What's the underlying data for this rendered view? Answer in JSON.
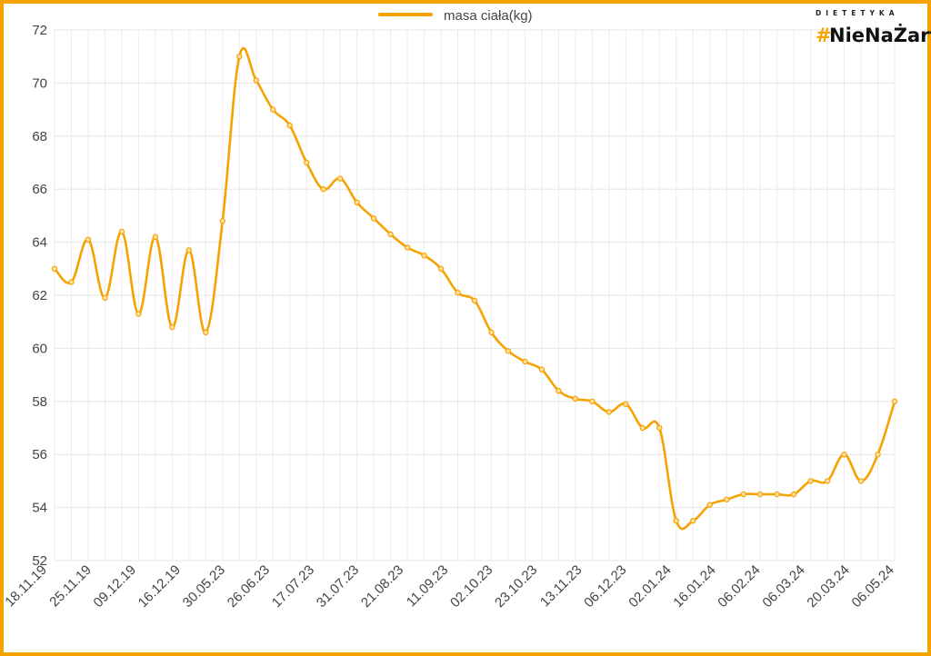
{
  "brand": {
    "top": "DIETETYKA",
    "hash": "#",
    "name": "NieNaŻarty",
    "accent": "#f5a300"
  },
  "chart_data": {
    "type": "line",
    "title": "",
    "xlabel": "",
    "ylabel": "",
    "ylim": [
      52,
      72
    ],
    "yticks": [
      52,
      54,
      56,
      58,
      60,
      62,
      64,
      66,
      68,
      70,
      72
    ],
    "grid": true,
    "legend_position": "top-center",
    "line_color": "#f5a300",
    "x_tick_labels": [
      "18.11.19",
      "25.11.19",
      "09.12.19",
      "16.12.19",
      "30.05.23",
      "26.06.23",
      "17.07.23",
      "31.07.23",
      "21.08.23",
      "11.09.23",
      "02.10.23",
      "23.10.23",
      "13.11.23",
      "06.12.23",
      "02.01.24",
      "16.01.24",
      "06.02.24",
      "06.03.24",
      "20.03.24",
      "06.05.24"
    ],
    "series": [
      {
        "name": "masa ciała(kg)",
        "values": [
          63.0,
          62.5,
          64.1,
          61.9,
          64.4,
          61.3,
          64.2,
          60.8,
          63.7,
          60.6,
          64.8,
          71.0,
          70.1,
          69.0,
          68.4,
          67.0,
          66.0,
          66.4,
          65.5,
          64.9,
          64.3,
          63.8,
          63.5,
          63.0,
          62.1,
          61.8,
          60.6,
          59.9,
          59.5,
          59.2,
          58.4,
          58.1,
          58.0,
          57.6,
          57.9,
          57.0,
          57.0,
          53.5,
          53.5,
          54.1,
          54.3,
          54.5,
          54.5,
          54.5,
          54.5,
          55.0,
          55.0,
          56.0,
          55.0,
          56.0,
          58.0
        ]
      }
    ]
  }
}
